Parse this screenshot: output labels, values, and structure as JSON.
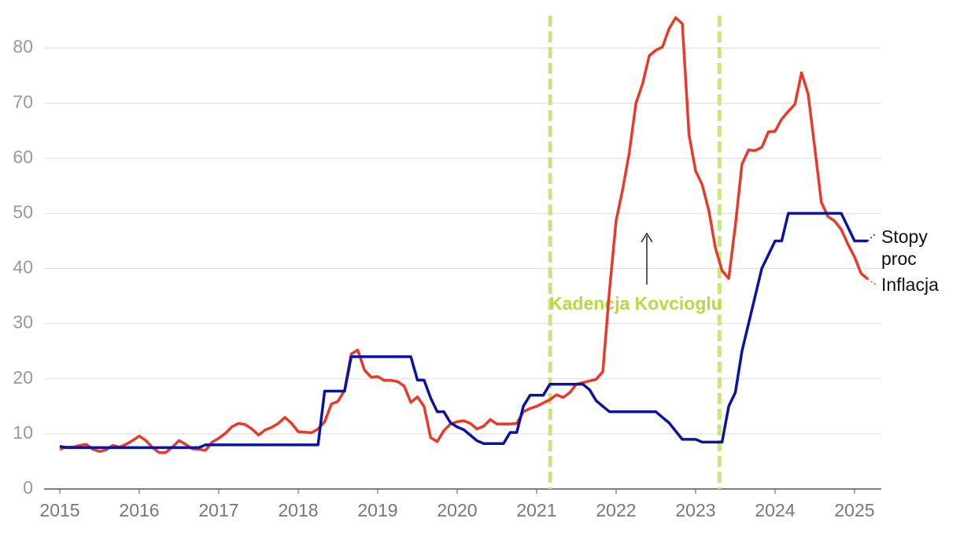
{
  "chart_data": {
    "type": "line",
    "x": [
      2015,
      2015.083,
      2015.167,
      2015.25,
      2015.333,
      2015.417,
      2015.5,
      2015.583,
      2015.667,
      2015.75,
      2015.833,
      2015.917,
      2016,
      2016.083,
      2016.167,
      2016.25,
      2016.333,
      2016.417,
      2016.5,
      2016.583,
      2016.667,
      2016.75,
      2016.833,
      2016.917,
      2017,
      2017.083,
      2017.167,
      2017.25,
      2017.333,
      2017.417,
      2017.5,
      2017.583,
      2017.667,
      2017.75,
      2017.833,
      2017.917,
      2018,
      2018.083,
      2018.167,
      2018.25,
      2018.333,
      2018.417,
      2018.5,
      2018.583,
      2018.667,
      2018.75,
      2018.833,
      2018.917,
      2019,
      2019.083,
      2019.167,
      2019.25,
      2019.333,
      2019.417,
      2019.5,
      2019.583,
      2019.667,
      2019.75,
      2019.833,
      2019.917,
      2020,
      2020.083,
      2020.167,
      2020.25,
      2020.333,
      2020.417,
      2020.5,
      2020.583,
      2020.667,
      2020.75,
      2020.833,
      2020.917,
      2021,
      2021.083,
      2021.167,
      2021.25,
      2021.333,
      2021.417,
      2021.5,
      2021.583,
      2021.667,
      2021.75,
      2021.833,
      2021.917,
      2022,
      2022.083,
      2022.167,
      2022.25,
      2022.333,
      2022.417,
      2022.5,
      2022.583,
      2022.667,
      2022.75,
      2022.833,
      2022.917,
      2023,
      2023.083,
      2023.167,
      2023.25,
      2023.333,
      2023.417,
      2023.5,
      2023.583,
      2023.667,
      2023.75,
      2023.833,
      2023.917,
      2024,
      2024.083,
      2024.167,
      2024.25,
      2024.333,
      2024.417,
      2024.5,
      2024.583,
      2024.667,
      2024.75,
      2024.833,
      2024.917,
      2025,
      2025.083,
      2025.167
    ],
    "series": [
      {
        "name": "Inflacja",
        "color": "#e8392a",
        "values": [
          7.2,
          7.6,
          7.6,
          7.9,
          8.1,
          7.2,
          6.8,
          7.1,
          7.9,
          7.6,
          8.1,
          8.8,
          9.6,
          8.8,
          7.5,
          6.6,
          6.6,
          7.6,
          8.8,
          8.1,
          7.3,
          7.2,
          7.0,
          8.5,
          9.2,
          10.1,
          11.3,
          11.9,
          11.7,
          10.9,
          9.8,
          10.7,
          11.2,
          11.9,
          13.0,
          11.9,
          10.4,
          10.3,
          10.2,
          10.9,
          12.2,
          15.4,
          15.9,
          17.9,
          24.5,
          25.2,
          21.6,
          20.3,
          20.4,
          19.7,
          19.7,
          19.5,
          18.7,
          15.7,
          16.7,
          15.0,
          9.3,
          8.6,
          10.6,
          11.8,
          12.2,
          12.4,
          11.9,
          10.9,
          11.4,
          12.6,
          11.8,
          11.8,
          11.8,
          11.9,
          14.0,
          14.6,
          15.0,
          15.6,
          16.2,
          17.1,
          16.6,
          17.5,
          19.0,
          19.3,
          19.6,
          19.9,
          21.3,
          36.1,
          48.7,
          54.4,
          61.1,
          70.0,
          73.5,
          78.6,
          79.6,
          80.2,
          83.5,
          85.5,
          84.4,
          64.3,
          57.7,
          55.2,
          50.5,
          43.7,
          39.6,
          38.2,
          47.8,
          58.9,
          61.5,
          61.4,
          62.0,
          64.8,
          64.9,
          67.1,
          68.5,
          69.8,
          75.5,
          71.6,
          61.8,
          52.0,
          49.4,
          48.6,
          47.1,
          44.4,
          42.1,
          39.1,
          38.1
        ]
      },
      {
        "name": "Stopy proc",
        "color": "#0a14a0",
        "values": [
          7.75,
          7.5,
          7.5,
          7.5,
          7.5,
          7.5,
          7.5,
          7.5,
          7.5,
          7.5,
          7.5,
          7.5,
          7.5,
          7.5,
          7.5,
          7.5,
          7.5,
          7.5,
          7.5,
          7.5,
          7.5,
          7.5,
          8,
          8,
          8,
          8,
          8,
          8,
          8,
          8,
          8,
          8,
          8,
          8,
          8,
          8,
          8,
          8,
          8,
          8,
          17.75,
          17.75,
          17.75,
          17.75,
          24,
          24,
          24,
          24,
          24,
          24,
          24,
          24,
          24,
          24,
          19.75,
          19.75,
          16.5,
          14,
          14,
          12,
          11.25,
          10.75,
          9.75,
          8.75,
          8.25,
          8.25,
          8.25,
          8.25,
          10.25,
          10.25,
          15,
          17,
          17,
          17,
          19,
          19,
          19,
          19,
          19,
          19,
          18,
          16,
          15,
          14,
          14,
          14,
          14,
          14,
          14,
          14,
          14,
          13,
          12,
          10.5,
          9,
          9,
          9,
          8.5,
          8.5,
          8.5,
          8.5,
          15,
          17.5,
          25,
          30,
          35,
          40,
          42.5,
          45,
          45,
          50,
          50,
          50,
          50,
          50,
          50,
          50,
          50,
          50,
          47.5,
          45,
          45,
          45
        ]
      }
    ],
    "xlim": [
      2014.802,
      2025.337
    ],
    "ylim": [
      0,
      87
    ],
    "xticks": [
      2015,
      2016,
      2017,
      2018,
      2019,
      2020,
      2021,
      2022,
      2023,
      2024,
      2025
    ],
    "yticks": [
      0,
      10,
      20,
      30,
      40,
      50,
      60,
      70,
      80
    ],
    "grid": true,
    "vlines": [
      2021.17,
      2023.3
    ],
    "vline_color": "#c8e67a",
    "annotation": "Kadencja Kovcioglu"
  }
}
